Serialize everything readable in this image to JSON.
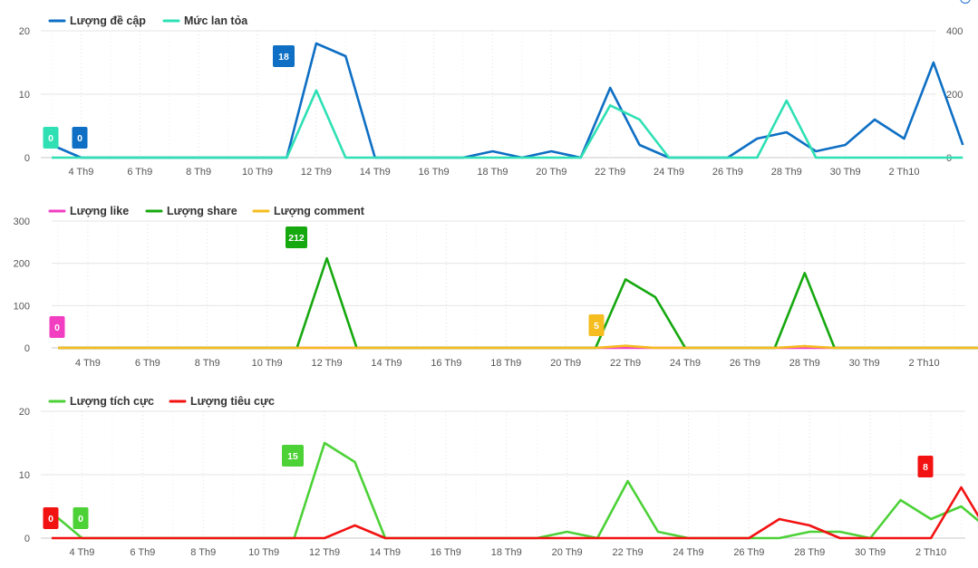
{
  "chart_data": [
    {
      "type": "line",
      "legend_position": "top-left",
      "grid": true,
      "x_tick_labels": [
        "4 Th9",
        "6 Th9",
        "8 Th9",
        "10 Th9",
        "12 Th9",
        "14 Th9",
        "16 Th9",
        "18 Th9",
        "20 Th9",
        "22 Th9",
        "24 Th9",
        "26 Th9",
        "28 Th9",
        "30 Th9",
        "2 Th10"
      ],
      "y_left": {
        "ylim": [
          0,
          20
        ],
        "ticks": [
          "0",
          "10",
          "20"
        ]
      },
      "y_right": {
        "ylim": [
          0,
          400
        ],
        "ticks": [
          "0",
          "200",
          "400"
        ]
      },
      "series": [
        {
          "name": "Lượng đề cập",
          "color": "#0e6fc4",
          "axis": "left",
          "values": [
            2,
            0,
            0,
            0,
            0,
            0,
            0,
            0,
            0,
            18,
            16,
            0,
            0,
            0,
            0,
            1,
            0,
            1,
            0,
            11,
            2,
            0,
            0,
            0,
            3,
            4,
            1,
            2,
            6,
            3,
            15,
            2
          ]
        },
        {
          "name": "Mức lan tỏa",
          "color": "#2ee0b4",
          "axis": "right",
          "values": [
            0,
            0,
            0,
            0,
            0,
            0,
            0,
            0,
            0,
            212,
            0,
            0,
            0,
            0,
            0,
            0,
            0,
            0,
            0,
            165,
            120,
            0,
            0,
            0,
            0,
            180,
            0,
            0,
            0,
            0,
            0,
            0
          ]
        }
      ],
      "badges": [
        {
          "text": "0",
          "color": "#2ee0b4"
        },
        {
          "text": "0",
          "color": "#0e6fc4"
        },
        {
          "text": "18",
          "color": "#0e6fc4"
        }
      ]
    },
    {
      "type": "line",
      "legend_position": "top-left",
      "grid": true,
      "x_tick_labels": [
        "4 Th9",
        "6 Th9",
        "8 Th9",
        "10 Th9",
        "12 Th9",
        "14 Th9",
        "16 Th9",
        "18 Th9",
        "20 Th9",
        "22 Th9",
        "24 Th9",
        "26 Th9",
        "28 Th9",
        "30 Th9",
        "2 Th10"
      ],
      "y_left": {
        "ylim": [
          0,
          300
        ],
        "ticks": [
          "0",
          "100",
          "200",
          "300"
        ]
      },
      "series": [
        {
          "name": "Lượng like",
          "color": "#f23ec1",
          "values": [
            0,
            0,
            0,
            0,
            0,
            0,
            0,
            0,
            0,
            0,
            0,
            0,
            0,
            0,
            0,
            0,
            0,
            0,
            0,
            0,
            0,
            0,
            0,
            0,
            0,
            0,
            0,
            0,
            0,
            0,
            0,
            0
          ]
        },
        {
          "name": "Lượng share",
          "color": "#16a80f",
          "values": [
            0,
            0,
            0,
            0,
            0,
            0,
            0,
            0,
            0,
            212,
            0,
            0,
            0,
            0,
            0,
            0,
            0,
            0,
            0,
            162,
            120,
            0,
            0,
            0,
            0,
            177,
            0,
            0,
            0,
            0,
            0,
            0
          ]
        },
        {
          "name": "Lượng comment",
          "color": "#f5bd1f",
          "values": [
            0,
            0,
            0,
            0,
            0,
            0,
            0,
            0,
            0,
            0,
            0,
            0,
            0,
            0,
            0,
            0,
            0,
            0,
            0,
            5,
            0,
            0,
            0,
            0,
            0,
            4,
            0,
            0,
            0,
            0,
            0,
            0
          ]
        }
      ],
      "badges": [
        {
          "text": "0",
          "color": "#f23ec1"
        },
        {
          "text": "212",
          "color": "#16a80f"
        },
        {
          "text": "5",
          "color": "#f5bd1f"
        }
      ]
    },
    {
      "type": "line",
      "legend_position": "top-left",
      "grid": true,
      "x_tick_labels": [
        "4 Th9",
        "6 Th9",
        "8 Th9",
        "10 Th9",
        "12 Th9",
        "14 Th9",
        "16 Th9",
        "18 Th9",
        "20 Th9",
        "22 Th9",
        "24 Th9",
        "26 Th9",
        "28 Th9",
        "30 Th9",
        "2 Th10"
      ],
      "y_left": {
        "ylim": [
          0,
          20
        ],
        "ticks": [
          "0",
          "10",
          "20"
        ]
      },
      "series": [
        {
          "name": "Lượng tích cực",
          "color": "#4cd137",
          "values": [
            4,
            0,
            0,
            0,
            0,
            0,
            0,
            0,
            0,
            15,
            12,
            0,
            0,
            0,
            0,
            0,
            0,
            1,
            0,
            9,
            1,
            0,
            0,
            0,
            0,
            1,
            1,
            0,
            6,
            3,
            5,
            1
          ]
        },
        {
          "name": "Lượng tiêu cực",
          "color": "#f21212",
          "values": [
            0,
            0,
            0,
            0,
            0,
            0,
            0,
            0,
            0,
            0,
            2,
            0,
            0,
            0,
            0,
            0,
            0,
            0,
            0,
            0,
            0,
            0,
            0,
            0,
            3,
            2,
            0,
            0,
            0,
            0,
            8,
            0
          ]
        }
      ],
      "badges": [
        {
          "text": "0",
          "color": "#f21212"
        },
        {
          "text": "0",
          "color": "#4cd137"
        },
        {
          "text": "15",
          "color": "#4cd137"
        },
        {
          "text": "8",
          "color": "#f21212"
        }
      ]
    }
  ]
}
